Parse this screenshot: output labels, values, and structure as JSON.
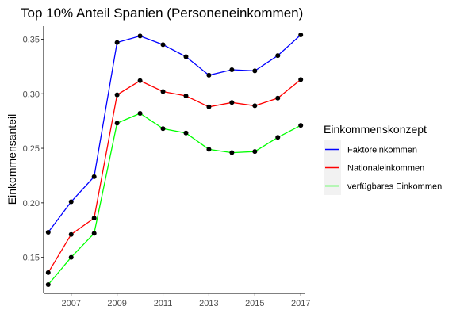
{
  "chart_data": {
    "type": "line",
    "title": "Top 10% Anteil Spanien (Personeneinkommen)",
    "xlabel": "",
    "ylabel": "Einkommensanteil",
    "x": [
      2006,
      2007,
      2008,
      2009,
      2010,
      2011,
      2012,
      2013,
      2014,
      2015,
      2016,
      2017
    ],
    "x_ticks": [
      2007,
      2009,
      2011,
      2013,
      2015,
      2017
    ],
    "y_ticks": [
      0.15,
      0.2,
      0.25,
      0.3,
      0.35
    ],
    "y_tick_labels": [
      "0.15",
      "0.20",
      "0.25",
      "0.30",
      "0.35"
    ],
    "xlim": [
      2005.8,
      2017.2
    ],
    "ylim": [
      0.117,
      0.362
    ],
    "grid": false,
    "legend": {
      "title": "Einkommenskonzept",
      "position": "right"
    },
    "series": [
      {
        "name": "Faktoreinkommen",
        "color": "#0000ff",
        "values": [
          0.173,
          0.201,
          0.224,
          0.347,
          0.353,
          0.345,
          0.334,
          0.317,
          0.322,
          0.321,
          0.335,
          0.354
        ]
      },
      {
        "name": "Nationaleinkommen",
        "color": "#ff0000",
        "values": [
          0.136,
          0.171,
          0.186,
          0.299,
          0.312,
          0.302,
          0.298,
          0.288,
          0.292,
          0.289,
          0.296,
          0.313
        ]
      },
      {
        "name": "verfügbares Einkommen",
        "color": "#00ff00",
        "values": [
          0.125,
          0.15,
          0.172,
          0.273,
          0.282,
          0.268,
          0.264,
          0.249,
          0.246,
          0.247,
          0.26,
          0.271
        ]
      }
    ]
  }
}
